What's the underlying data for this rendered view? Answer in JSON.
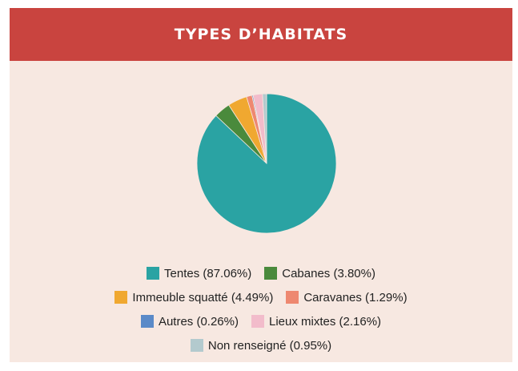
{
  "chart_data": {
    "type": "pie",
    "title": "TYPES D’HABITATS",
    "categories": [
      "Tentes (87.06%)",
      "Cabanes (3.80%)",
      "Immeuble squatté (4.49%)",
      "Caravanes (1.29%)",
      "Autres (0.26%)",
      "Lieux mixtes (2.16%)",
      "Non renseigné (0.95%)"
    ],
    "values": [
      87.06,
      3.8,
      4.49,
      1.29,
      0.26,
      2.16,
      0.95
    ],
    "colors": [
      "#2aa3a3",
      "#4a8a3c",
      "#f0a830",
      "#ee8870",
      "#5b8ac8",
      "#f2bccb",
      "#b3cace"
    ],
    "legend": "bottom"
  }
}
